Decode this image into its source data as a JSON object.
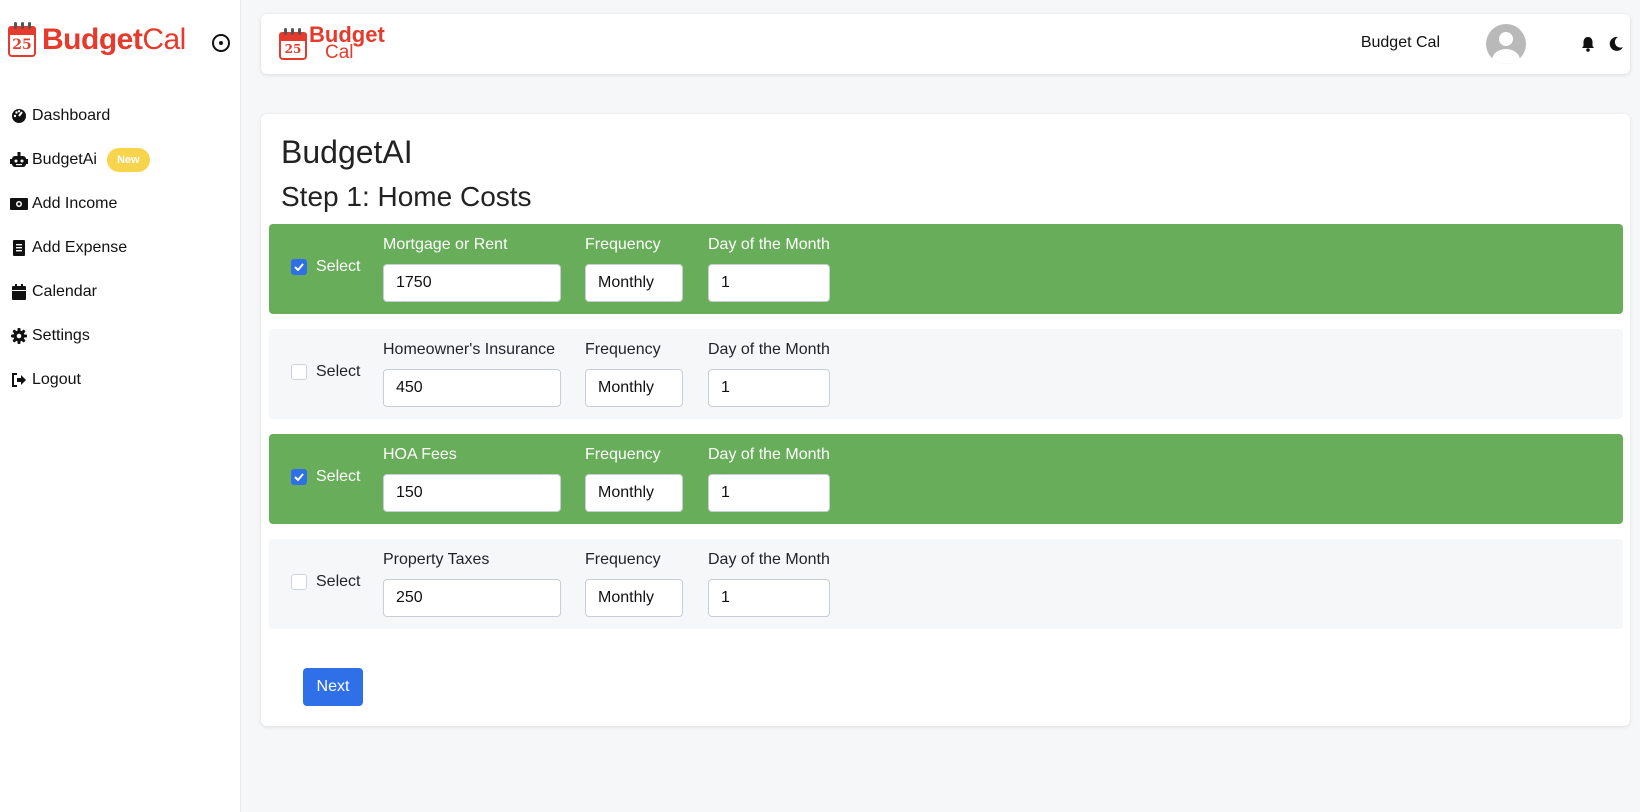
{
  "sidebar": {
    "brand": {
      "bold": "Budget",
      "light": "Cal",
      "logo_day": "25"
    },
    "items": [
      {
        "label": "Dashboard",
        "icon": "dashboard-icon"
      },
      {
        "label": "BudgetAi",
        "icon": "robot-icon",
        "badge": "New"
      },
      {
        "label": "Add Income",
        "icon": "money-icon"
      },
      {
        "label": "Add Expense",
        "icon": "receipt-icon"
      },
      {
        "label": "Calendar",
        "icon": "calendar-icon"
      },
      {
        "label": "Settings",
        "icon": "gear-icon"
      },
      {
        "label": "Logout",
        "icon": "logout-icon"
      }
    ]
  },
  "header": {
    "brand": {
      "bold": "Budget",
      "light": "Cal",
      "logo_day": "25"
    },
    "user_name": "Budget Cal"
  },
  "main": {
    "title": "BudgetAI",
    "step_title": "Step 1: Home Costs",
    "select_label": "Select",
    "frequency_label": "Frequency",
    "day_label": "Day of the Month",
    "rows": [
      {
        "name": "Mortgage or Rent",
        "amount": "1750",
        "frequency": "Monthly",
        "day": "1",
        "checked": true
      },
      {
        "name": "Homeowner's Insurance",
        "amount": "450",
        "frequency": "Monthly",
        "day": "1",
        "checked": false
      },
      {
        "name": "HOA Fees",
        "amount": "150",
        "frequency": "Monthly",
        "day": "1",
        "checked": true
      },
      {
        "name": "Property Taxes",
        "amount": "250",
        "frequency": "Monthly",
        "day": "1",
        "checked": false
      }
    ],
    "next_label": "Next"
  },
  "colors": {
    "brand": "#e53a2c",
    "selected_row": "#68ad59",
    "primary": "#2f6fe8",
    "badge": "#f8d44c"
  }
}
